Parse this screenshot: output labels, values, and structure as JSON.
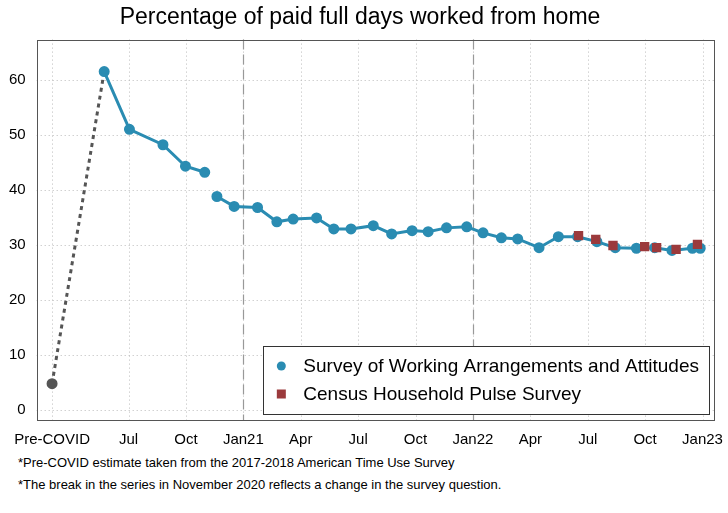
{
  "chart_data": {
    "type": "line",
    "title": "Percentage of paid full days worked from home",
    "notes": [
      "*Pre-COVID estimate taken from the 2017-2018 American Time Use Survey",
      "*The break in the series in November 2020 reflects a change in the survey question."
    ],
    "xlim": [
      2020.1,
      2023.05
    ],
    "xticks": [
      {
        "value": 2020.167,
        "label": "Pre-COVID"
      },
      {
        "value": 2020.5,
        "label": "Jul"
      },
      {
        "value": 2020.75,
        "label": "Oct"
      },
      {
        "value": 2021,
        "label": "Jan21"
      },
      {
        "value": 2021.25,
        "label": "Apr"
      },
      {
        "value": 2021.5,
        "label": "Jul"
      },
      {
        "value": 2021.75,
        "label": "Oct"
      },
      {
        "value": 2022,
        "label": "Jan22"
      },
      {
        "value": 2022.25,
        "label": "Apr"
      },
      {
        "value": 2022.5,
        "label": "Jul"
      },
      {
        "value": 2022.75,
        "label": "Oct"
      },
      {
        "value": 2023,
        "label": "Jan23"
      }
    ],
    "ylim": [
      -1.8,
      67.3
    ],
    "yticks": [
      0,
      10,
      20,
      30,
      40,
      50,
      60
    ],
    "grid": true,
    "legend": "lower right",
    "series": [
      {
        "name": "Survey of Working Arrangements and Attitudes",
        "color": "#2a8cb2",
        "marker": "circle",
        "line_style": "solid",
        "colors": [
          "#555555",
          "#2a8cb2",
          "#2a8cb2",
          "#2a8cb2",
          "#2a8cb2",
          "#2a8cb2",
          "#2a8cb2",
          "#2a8cb2",
          "#2a8cb2",
          "#2a8cb2",
          "#2a8cb2",
          "#2a8cb2",
          "#2a8cb2",
          "#2a8cb2",
          "#2a8cb2",
          "#2a8cb2",
          "#2a8cb2",
          "#2a8cb2",
          "#2a8cb2",
          "#2a8cb2",
          "#2a8cb2",
          "#2a8cb2",
          "#2a8cb2",
          "#2a8cb2",
          "#2a8cb2",
          "#2a8cb2",
          "#2a8cb2",
          "#2a8cb2",
          "#2a8cb2",
          "#2a8cb2",
          "#2a8cb2",
          "#2a8cb2",
          "#2a8cb2",
          "#2a8cb2"
        ],
        "x": [
          2020.167,
          2020.394,
          2020.504,
          2020.65,
          2020.748,
          2020.832,
          2020.86,
          2020.885,
          2020.96,
          2021.062,
          2021.146,
          2021.217,
          2021.319,
          2021.394,
          2021.469,
          2021.566,
          2021.646,
          2021.735,
          2021.805,
          2021.885,
          2021.973,
          2022.044,
          2022.124,
          2022.195,
          2022.288,
          2022.372,
          2022.456,
          2022.54,
          2022.62,
          2022.712,
          2022.792,
          2022.867,
          2022.956,
          2022.99
        ],
        "values": [
          4.8,
          61.5,
          51.0,
          48.2,
          44.3,
          43.2,
          null,
          38.8,
          37.0,
          36.8,
          34.2,
          34.7,
          34.9,
          32.9,
          32.9,
          33.5,
          32.0,
          32.6,
          32.4,
          33.1,
          33.3,
          32.2,
          31.3,
          31.1,
          29.5,
          31.5,
          31.5,
          30.6,
          29.5,
          29.4,
          29.5,
          29.0,
          29.4,
          29.4
        ]
      },
      {
        "name": "Census Household Pulse Survey",
        "color": "#9b3a3c",
        "marker": "square",
        "line_style": "none",
        "x": [
          2022.46,
          2022.535,
          2022.61,
          2022.748,
          2022.8,
          2022.885,
          2022.978
        ],
        "values": [
          31.7,
          31.0,
          29.9,
          29.7,
          29.5,
          29.2,
          30.1
        ]
      }
    ]
  }
}
